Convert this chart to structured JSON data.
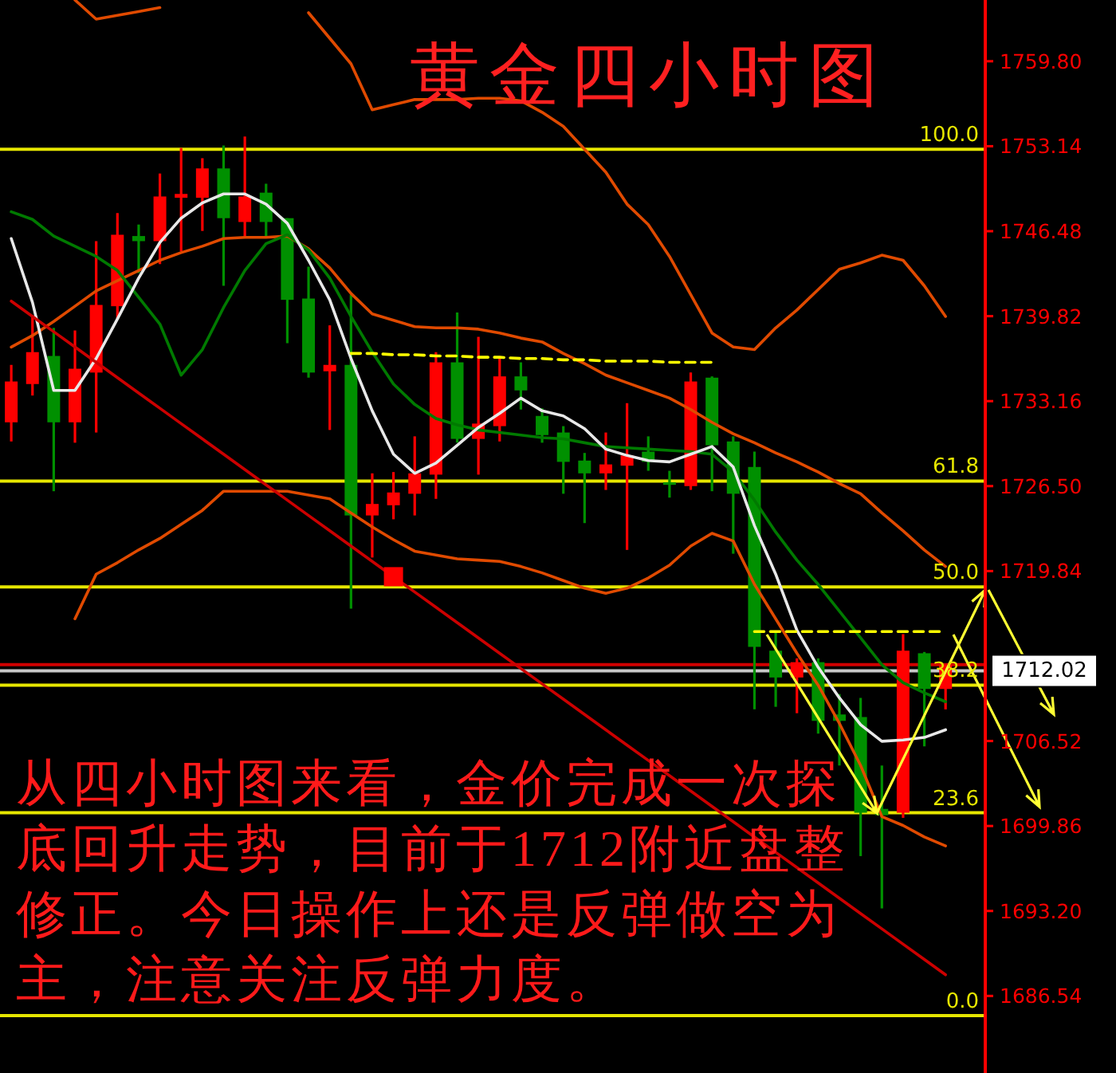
{
  "chart_data": {
    "type": "candlestick",
    "title": "黄金四小时图",
    "categories": [
      null,
      null,
      null,
      null,
      null,
      null,
      null,
      null,
      null,
      null,
      null,
      null,
      null,
      null,
      null,
      null,
      null,
      null,
      null,
      null,
      null,
      null,
      null,
      null,
      null,
      null,
      null,
      null,
      null,
      null,
      null,
      null,
      null,
      null,
      null,
      null,
      null,
      null,
      null,
      null,
      null,
      null,
      null,
      null,
      null
    ],
    "ohlc": [
      [
        1731.5,
        1736.0,
        1730.0,
        1734.7
      ],
      [
        1734.5,
        1739.9,
        1733.6,
        1737.0
      ],
      [
        1736.7,
        1738.9,
        1726.1,
        1731.5
      ],
      [
        1731.5,
        1738.7,
        1729.9,
        1735.7
      ],
      [
        1735.4,
        1745.7,
        1730.7,
        1740.7
      ],
      [
        1740.6,
        1747.9,
        1739.6,
        1746.2
      ],
      [
        1746.1,
        1747.0,
        1743.2,
        1745.7
      ],
      [
        1745.7,
        1751.0,
        1743.9,
        1749.2
      ],
      [
        1749.1,
        1753.0,
        1744.9,
        1749.4
      ],
      [
        1749.1,
        1752.2,
        1746.5,
        1751.4
      ],
      [
        1751.4,
        1753.2,
        1742.2,
        1747.5
      ],
      [
        1747.2,
        1753.9,
        1746.0,
        1749.2
      ],
      [
        1749.5,
        1750.2,
        1746.1,
        1747.2
      ],
      [
        1747.5,
        1747.5,
        1737.7,
        1741.1
      ],
      [
        1741.2,
        1743.7,
        1735.0,
        1735.4
      ],
      [
        1735.5,
        1739.1,
        1730.9,
        1736.0
      ],
      [
        1736.0,
        1741.5,
        1716.9,
        1724.2
      ],
      [
        1724.2,
        1727.5,
        1720.9,
        1725.1
      ],
      [
        1725.0,
        1727.6,
        1723.9,
        1726.0
      ],
      [
        1725.9,
        1730.4,
        1724.2,
        1727.5
      ],
      [
        1727.4,
        1737.0,
        1725.5,
        1736.2
      ],
      [
        1736.2,
        1740.1,
        1729.9,
        1730.2
      ],
      [
        1730.2,
        1738.2,
        1727.4,
        1731.4
      ],
      [
        1731.2,
        1736.5,
        1730.0,
        1735.1
      ],
      [
        1735.1,
        1736.2,
        1732.5,
        1734.0
      ],
      [
        1732.0,
        1732.6,
        1729.9,
        1730.5
      ],
      [
        1730.7,
        1731.2,
        1725.9,
        1728.4
      ],
      [
        1728.5,
        1729.1,
        1723.6,
        1727.5
      ],
      [
        1727.5,
        1730.7,
        1726.2,
        1728.2
      ],
      [
        1728.1,
        1733.0,
        1721.5,
        1728.9
      ],
      [
        1729.2,
        1730.4,
        1727.7,
        1728.4
      ],
      [
        1726.8,
        1727.7,
        1725.6,
        1726.6
      ],
      [
        1726.5,
        1735.4,
        1726.2,
        1734.7
      ],
      [
        1735.0,
        1735.1,
        1726.1,
        1729.7
      ],
      [
        1730.0,
        1730.4,
        1721.2,
        1725.9
      ],
      [
        1728.0,
        1729.2,
        1709.0,
        1713.9
      ],
      [
        1713.6,
        1715.0,
        1709.2,
        1711.5
      ],
      [
        1711.5,
        1713.0,
        1708.7,
        1712.7
      ],
      [
        1712.7,
        1713.0,
        1707.1,
        1708.1
      ],
      [
        1708.6,
        1710.2,
        1704.6,
        1708.1
      ],
      [
        1708.4,
        1709.9,
        1697.5,
        1700.9
      ],
      [
        1701.2,
        1704.6,
        1693.4,
        1700.7
      ],
      [
        1700.9,
        1714.9,
        1700.5,
        1713.6
      ],
      [
        1713.4,
        1713.5,
        1706.1,
        1710.6
      ],
      [
        1710.6,
        1712.5,
        1709.0,
        1712.5
      ]
    ],
    "colors": [
      "#ff0000",
      "#ff0000",
      "#009000",
      "#ff0000",
      "#ff0000",
      "#ff0000",
      "#009000",
      "#ff0000",
      "#ff0000",
      "#ff0000",
      "#009000",
      "#ff0000",
      "#009000",
      "#009000",
      "#009000",
      "#ff0000",
      "#009000",
      "#ff0000",
      "#ff0000",
      "#ff0000",
      "#ff0000",
      "#009000",
      "#ff0000",
      "#ff0000",
      "#009000",
      "#009000",
      "#009000",
      "#009000",
      "#ff0000",
      "#ff0000",
      "#009000",
      "#009000",
      "#ff0000",
      "#009000",
      "#009000",
      "#009000",
      "#009000",
      "#ff0000",
      "#009000",
      "#009000",
      "#009000",
      "#009000",
      "#ff0000",
      "#009000",
      "#ff0000"
    ],
    "ylim": [
      1680.5,
      1764.6
    ],
    "yticks": [
      {
        "value": 1759.8,
        "label": "1759.80"
      },
      {
        "value": 1753.14,
        "label": "1753.14"
      },
      {
        "value": 1746.48,
        "label": "1746.48"
      },
      {
        "value": 1739.82,
        "label": "1739.82"
      },
      {
        "value": 1733.16,
        "label": "1733.16"
      },
      {
        "value": 1726.5,
        "label": "1726.50"
      },
      {
        "value": 1719.84,
        "label": "1719.84"
      },
      {
        "value": 1706.52,
        "label": "1706.52"
      },
      {
        "value": 1699.86,
        "label": "1699.86"
      },
      {
        "value": 1693.2,
        "label": "1693.20"
      },
      {
        "value": 1686.54,
        "label": "1686.54"
      }
    ],
    "tick_labels": "y",
    "series": [
      {
        "type": "line",
        "color": "#e04a00",
        "values": [
          null,
          null,
          null,
          1764.6,
          1763.1,
          1763.4,
          1763.7,
          1764.0,
          null,
          null,
          null,
          null,
          null,
          null,
          1763.6,
          1761.6,
          1759.6,
          1756.0,
          1756.4,
          1756.8,
          1756.8,
          1756.8,
          1756.9,
          1756.9,
          1756.7,
          1755.8,
          1754.7,
          1752.9,
          1751.1,
          1748.6,
          1747.0,
          1744.5,
          1741.5,
          1738.5,
          1737.4,
          1737.2,
          1738.9,
          1740.3,
          1741.9,
          1743.5,
          1744.0,
          1744.6,
          1744.2,
          1742.2,
          1739.8
        ]
      },
      {
        "type": "line",
        "color": "#e04a00",
        "values": [
          1737.4,
          1738.3,
          1739.4,
          1740.6,
          1741.8,
          1742.6,
          1743.4,
          1744.2,
          1744.8,
          1745.3,
          1745.9,
          1746.0,
          1746.0,
          1746.1,
          1745.1,
          1743.6,
          1741.6,
          1740.0,
          1739.5,
          1739.0,
          1738.9,
          1738.9,
          1738.8,
          1738.5,
          1738.1,
          1737.8,
          1736.9,
          1736.1,
          1735.2,
          1734.6,
          1734.0,
          1733.4,
          1732.5,
          1731.5,
          1730.6,
          1729.9,
          1729.1,
          1728.4,
          1727.6,
          1726.7,
          1725.9,
          1724.4,
          1723.0,
          1721.5,
          1720.2
        ]
      },
      {
        "type": "line",
        "color": "#e04a00",
        "values": [
          null,
          null,
          null,
          1716.1,
          1719.6,
          1720.5,
          1721.5,
          1722.4,
          1723.5,
          1724.6,
          1726.1,
          1726.1,
          1726.1,
          1726.1,
          1725.8,
          1725.5,
          1724.4,
          1723.3,
          1722.3,
          1721.4,
          1721.1,
          1720.8,
          1720.7,
          1720.6,
          1720.2,
          1719.7,
          1719.1,
          1718.5,
          1718.1,
          1718.5,
          1719.3,
          1720.3,
          1721.8,
          1722.8,
          1722.2,
          1718.8,
          1716.1,
          1713.4,
          1710.9,
          1707.9,
          1704.6,
          1700.6,
          1699.9,
          1699.0,
          1698.3
        ]
      },
      {
        "type": "line",
        "color": "#007a00",
        "values": [
          1748.0,
          1747.4,
          1746.1,
          1745.3,
          1744.5,
          1743.4,
          1741.3,
          1739.2,
          1735.2,
          1737.2,
          1740.5,
          1743.4,
          1745.5,
          1746.2,
          1745.0,
          1742.8,
          1739.8,
          1737.0,
          1734.5,
          1732.9,
          1731.8,
          1731.3,
          1730.9,
          1730.7,
          1730.5,
          1730.3,
          1730.2,
          1729.9,
          1729.6,
          1729.5,
          1729.4,
          1729.3,
          1729.2,
          1729.0,
          1727.6,
          1725.4,
          1722.9,
          1720.7,
          1718.8,
          1716.7,
          1714.6,
          1712.5,
          1711.1,
          1710.3,
          1709.6
        ]
      },
      {
        "type": "line",
        "color": "#e8e8e8",
        "values": [
          1745.9,
          1740.9,
          1734.0,
          1734.0,
          1736.5,
          1739.6,
          1742.8,
          1745.6,
          1747.5,
          1748.7,
          1749.4,
          1749.4,
          1748.6,
          1747.1,
          1744.2,
          1741.1,
          1736.5,
          1732.4,
          1729.0,
          1727.5,
          1728.3,
          1729.7,
          1731.1,
          1732.2,
          1733.4,
          1732.4,
          1732.0,
          1731.0,
          1729.4,
          1728.9,
          1728.5,
          1728.4,
          1729.0,
          1729.6,
          1728.0,
          1723.4,
          1719.6,
          1715.2,
          1712.3,
          1709.9,
          1707.8,
          1706.5,
          1706.6,
          1706.8,
          1707.4
        ]
      },
      {
        "type": "line",
        "color": "#cc0000",
        "values": [
          1741.0,
          1739.8,
          1738.6,
          1737.4,
          1736.2,
          1735.0,
          1733.8,
          1732.6,
          1731.4,
          1730.2,
          1729.0,
          1727.8,
          1726.6,
          1725.4,
          1724.2,
          1723.0,
          1721.8,
          1720.6,
          1719.4,
          1718.2,
          1717.0,
          1715.8,
          1714.6,
          1713.4,
          1712.2,
          1711.0,
          1709.8,
          1708.6,
          1707.4,
          1706.2,
          1705.0,
          1703.8,
          1702.6,
          1701.4,
          1700.2,
          1699.0,
          1697.8,
          1696.6,
          1695.4,
          1694.2,
          1693.0,
          1691.8,
          1690.6,
          1689.4,
          1688.2
        ]
      },
      {
        "type": "scatter",
        "marker": "square",
        "color": "#ff0000",
        "values": [
          null,
          null,
          null,
          null,
          null,
          null,
          null,
          null,
          null,
          null,
          null,
          null,
          null,
          null,
          null,
          null,
          null,
          null,
          1719.4,
          null,
          null,
          null,
          null,
          null,
          null,
          null,
          null,
          null,
          null,
          null,
          null,
          null,
          null,
          null,
          null,
          null,
          null,
          null,
          null,
          null,
          null,
          null,
          null,
          null,
          null
        ]
      },
      {
        "type": "line",
        "line_style": "dashed",
        "color": "#ffff00",
        "values": [
          null,
          null,
          null,
          null,
          null,
          null,
          null,
          null,
          null,
          null,
          null,
          null,
          null,
          null,
          null,
          null,
          1736.9,
          1736.9,
          1736.8,
          1736.8,
          1736.7,
          1736.7,
          1736.6,
          1736.6,
          1736.5,
          1736.5,
          1736.4,
          1736.4,
          1736.3,
          1736.3,
          1736.3,
          1736.2,
          1736.2,
          1736.2,
          null,
          null,
          null,
          null,
          null,
          null,
          null,
          null,
          null,
          null,
          null
        ]
      },
      {
        "type": "line",
        "line_style": "dashed",
        "color": "#ffff00",
        "values": [
          null,
          null,
          null,
          null,
          null,
          null,
          null,
          null,
          null,
          null,
          null,
          null,
          null,
          null,
          null,
          null,
          null,
          null,
          null,
          null,
          null,
          null,
          null,
          null,
          null,
          null,
          null,
          null,
          null,
          null,
          null,
          null,
          null,
          null,
          null,
          1715.1,
          1715.1,
          1715.1,
          1715.1,
          1715.1,
          1715.1,
          1715.1,
          1715.1,
          1715.1,
          1715.1
        ]
      }
    ],
    "ref_lines": [
      {
        "axis": "y",
        "value": 1712.5,
        "color": "#d00000"
      },
      {
        "axis": "y",
        "value": 1712.02,
        "label": "1712.02",
        "color": "#c8c8c8"
      },
      {
        "axis": "y",
        "value": 1752.9,
        "color": "#e6e600"
      },
      {
        "axis": "y",
        "value": 1726.9,
        "color": "#e6e600"
      },
      {
        "axis": "y",
        "value": 1718.6,
        "color": "#e6e600"
      },
      {
        "axis": "y",
        "value": 1710.9,
        "color": "#e6e600"
      },
      {
        "axis": "y",
        "value": 1700.9,
        "color": "#e6e600"
      },
      {
        "axis": "y",
        "value": 1685.0,
        "color": "#e6e600"
      }
    ],
    "annotations": [
      "从四小时图来看，金价完成一次探",
      "底回升走势，目前于1712附近盘整",
      "修正。今日操作上还是反弹做空为",
      "主，注意关注反弹力度。",
      {
        "text": "100.0",
        "y": 1752.9
      },
      {
        "text": "61.8",
        "y": 1726.9
      },
      {
        "text": "50.0",
        "y": 1718.6
      },
      {
        "text": "38.2",
        "y": 1710.9
      },
      {
        "text": "23.6",
        "y": 1700.9
      },
      {
        "text": "0.0",
        "y": 1685.0
      }
    ]
  }
}
